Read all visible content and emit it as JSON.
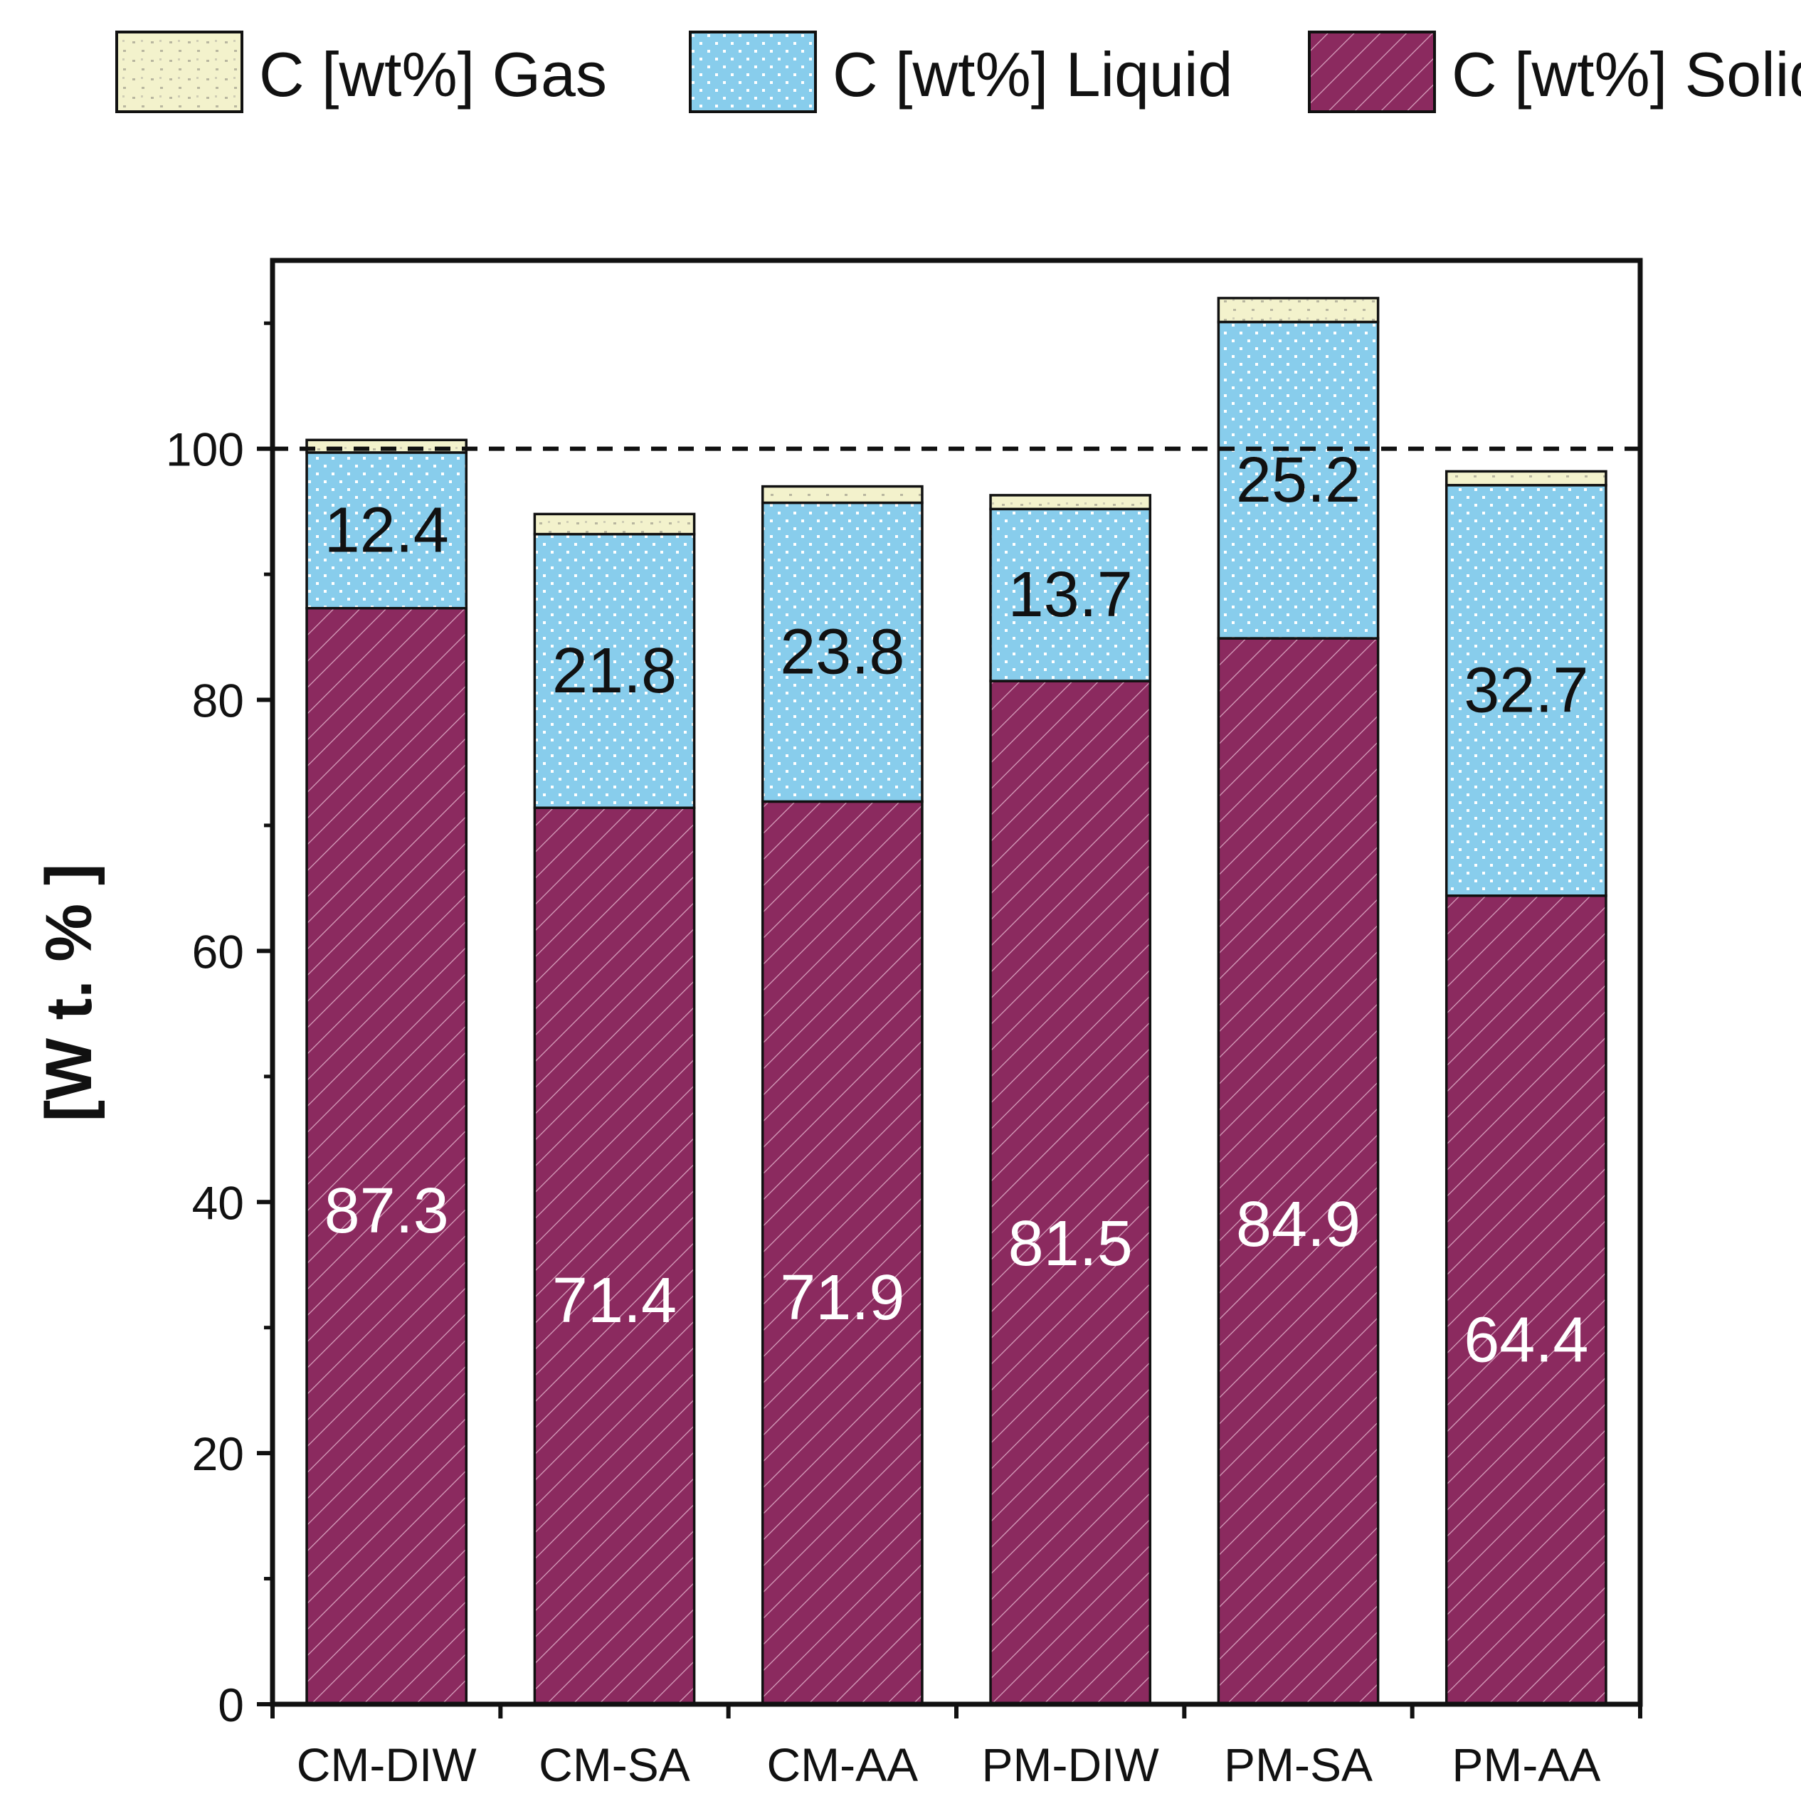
{
  "chart_data": {
    "type": "bar",
    "stacked": true,
    "title": "",
    "xlabel": "",
    "ylabel": "[W t. % ]",
    "categories": [
      "CM-DIW",
      "CM-SA",
      "CM-AA",
      "PM-DIW",
      "PM-SA",
      "PM-AA"
    ],
    "series": [
      {
        "name": "C [wt%] Solid",
        "values": [
          87.3,
          71.4,
          71.9,
          81.5,
          84.9,
          64.4
        ],
        "color": "#8b2a5f",
        "pattern": "diagonal-hatch",
        "labels": [
          "87.3",
          "71.4",
          "71.9",
          "81.5",
          "84.9",
          "64.4"
        ],
        "label_color": "#ffffff"
      },
      {
        "name": "C [wt%] Liquid",
        "values": [
          12.4,
          21.8,
          23.8,
          13.7,
          25.2,
          32.7
        ],
        "color": "#88cdec",
        "pattern": "dots",
        "labels": [
          "12.4",
          "21.8",
          "23.8",
          "13.7",
          "25.2",
          "32.7"
        ],
        "label_color": "#111111"
      },
      {
        "name": "C [wt%] Gas",
        "values": [
          1.0,
          1.6,
          1.3,
          1.1,
          1.9,
          1.1
        ],
        "color": "#f3f2cc",
        "pattern": "speckle",
        "labels": [
          "",
          "",
          "",
          "",
          "",
          ""
        ],
        "label_color": "#111111"
      }
    ],
    "legend_order": [
      "C [wt%] Gas",
      "C [wt%] Liquid",
      "C [wt%] Solid"
    ],
    "legend_position": "top",
    "ylim": [
      0,
      115
    ],
    "yticks": [
      0,
      20,
      40,
      60,
      80,
      100
    ],
    "ytick_labels": [
      "0",
      "20",
      "40",
      "60",
      "80",
      "100"
    ],
    "reference_line": {
      "y": 100,
      "style": "dashed"
    },
    "grid": false
  }
}
